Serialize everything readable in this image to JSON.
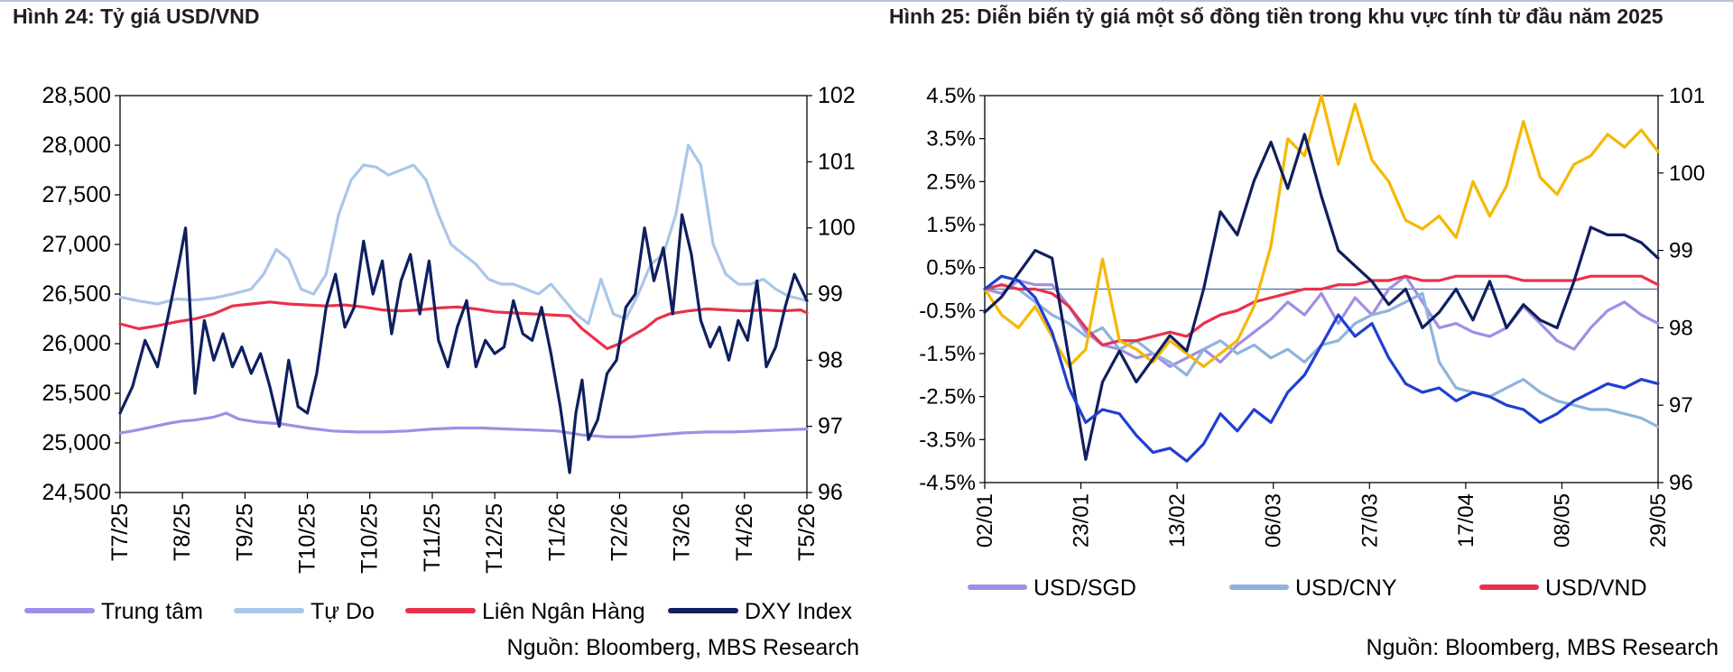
{
  "chart_data": [
    {
      "type": "line",
      "title": "Hình 24: Tỷ giá USD/VND",
      "x_ticks": [
        "T7/25",
        "T8/25",
        "T9/25",
        "T10/25",
        "T10/25",
        "T11/25",
        "T12/25",
        "T1/26",
        "T2/26",
        "T3/26",
        "T4/26",
        "T5/26"
      ],
      "y_left": {
        "ticks": [
          "28,500",
          "28,000",
          "27,500",
          "27,000",
          "26,500",
          "26,000",
          "25,500",
          "25,000",
          "24,500"
        ],
        "range": [
          24500,
          28500
        ]
      },
      "y_right": {
        "ticks": [
          "102",
          "101",
          "100",
          "99",
          "98",
          "97",
          "96"
        ],
        "range": [
          96,
          102
        ]
      },
      "source": "Nguồn: Bloomberg, MBS Research",
      "legend_position": "bottom",
      "series": [
        {
          "name": "Trung tâm",
          "axis": "left",
          "color": "#a08ee6",
          "x": [
            0,
            0.2,
            0.5,
            0.8,
            1,
            1.2,
            1.5,
            1.7,
            1.9,
            2.2,
            2.6,
            3,
            3.4,
            3.8,
            4.2,
            4.6,
            5,
            5.4,
            5.8,
            6.2,
            6.6,
            7,
            7.4,
            7.8,
            8.2,
            8.6,
            9,
            9.4,
            9.8,
            10.2,
            10.6,
            11
          ],
          "values": [
            25100,
            25120,
            25160,
            25200,
            25220,
            25230,
            25260,
            25300,
            25240,
            25210,
            25190,
            25150,
            25120,
            25110,
            25110,
            25120,
            25140,
            25150,
            25150,
            25140,
            25130,
            25120,
            25080,
            25060,
            25060,
            25080,
            25100,
            25110,
            25110,
            25120,
            25130,
            25140
          ]
        },
        {
          "name": "Tự Do",
          "axis": "left",
          "color": "#a9c7e8",
          "x": [
            0,
            0.3,
            0.6,
            0.9,
            1.2,
            1.5,
            1.8,
            2.1,
            2.3,
            2.5,
            2.7,
            2.9,
            3.1,
            3.3,
            3.5,
            3.7,
            3.9,
            4.1,
            4.3,
            4.5,
            4.7,
            4.9,
            5.1,
            5.3,
            5.5,
            5.7,
            5.9,
            6.1,
            6.3,
            6.5,
            6.7,
            6.9,
            7.1,
            7.3,
            7.5,
            7.7,
            7.9,
            8.1,
            8.3,
            8.5,
            8.7,
            8.9,
            9.1,
            9.3,
            9.5,
            9.7,
            9.9,
            10.1,
            10.3,
            10.5,
            10.7,
            10.9,
            11
          ],
          "values": [
            26470,
            26430,
            26400,
            26450,
            26440,
            26460,
            26500,
            26550,
            26700,
            26950,
            26850,
            26550,
            26500,
            26700,
            27300,
            27650,
            27800,
            27780,
            27700,
            27750,
            27800,
            27650,
            27300,
            27000,
            26900,
            26800,
            26650,
            26600,
            26600,
            26550,
            26500,
            26600,
            26450,
            26300,
            26200,
            26650,
            26300,
            26250,
            26500,
            26800,
            26900,
            27300,
            28000,
            27800,
            27000,
            26700,
            26600,
            26600,
            26650,
            26550,
            26480,
            26450,
            26430
          ]
        },
        {
          "name": "Liên Ngân Hàng",
          "axis": "left",
          "color": "#e8324b",
          "x": [
            0,
            0.3,
            0.6,
            0.9,
            1.2,
            1.5,
            1.8,
            2.1,
            2.4,
            2.7,
            3,
            3.3,
            3.6,
            3.9,
            4.2,
            4.5,
            4.8,
            5.1,
            5.4,
            5.7,
            6,
            6.3,
            6.6,
            6.9,
            7.2,
            7.4,
            7.6,
            7.8,
            8,
            8.2,
            8.4,
            8.6,
            8.8,
            9.1,
            9.4,
            9.7,
            10,
            10.3,
            10.6,
            10.9,
            11
          ],
          "values": [
            26200,
            26150,
            26180,
            26220,
            26250,
            26300,
            26380,
            26400,
            26420,
            26400,
            26390,
            26380,
            26390,
            26370,
            26340,
            26330,
            26340,
            26360,
            26370,
            26350,
            26320,
            26310,
            26300,
            26290,
            26280,
            26150,
            26050,
            25950,
            26000,
            26080,
            26150,
            26250,
            26300,
            26330,
            26350,
            26340,
            26330,
            26340,
            26330,
            26340,
            26310
          ]
        },
        {
          "name": "DXY Index",
          "axis": "right",
          "color": "#0f1f5e",
          "x": [
            0,
            0.2,
            0.4,
            0.6,
            0.8,
            0.95,
            1.05,
            1.2,
            1.35,
            1.5,
            1.65,
            1.8,
            1.95,
            2.1,
            2.25,
            2.4,
            2.55,
            2.7,
            2.85,
            3,
            3.15,
            3.3,
            3.45,
            3.6,
            3.75,
            3.9,
            4.05,
            4.2,
            4.35,
            4.5,
            4.65,
            4.8,
            4.95,
            5.1,
            5.25,
            5.4,
            5.55,
            5.7,
            5.85,
            6,
            6.15,
            6.3,
            6.45,
            6.6,
            6.75,
            6.9,
            7.05,
            7.2,
            7.3,
            7.4,
            7.5,
            7.65,
            7.8,
            7.95,
            8.1,
            8.25,
            8.4,
            8.55,
            8.7,
            8.85,
            9,
            9.15,
            9.3,
            9.45,
            9.6,
            9.75,
            9.9,
            10.05,
            10.2,
            10.35,
            10.5,
            10.65,
            10.8,
            10.95,
            11
          ],
          "values": [
            97.2,
            97.6,
            98.3,
            97.9,
            98.8,
            99.5,
            100.0,
            97.5,
            98.6,
            98.0,
            98.4,
            97.9,
            98.2,
            97.8,
            98.1,
            97.6,
            97.0,
            98.0,
            97.3,
            97.2,
            97.8,
            98.8,
            99.3,
            98.5,
            98.8,
            99.8,
            99.0,
            99.5,
            98.4,
            99.2,
            99.6,
            98.7,
            99.5,
            98.3,
            97.9,
            98.5,
            98.9,
            97.9,
            98.3,
            98.1,
            98.2,
            98.9,
            98.4,
            98.3,
            98.8,
            98.1,
            97.3,
            96.3,
            97.2,
            97.7,
            96.8,
            97.1,
            97.8,
            98.0,
            98.8,
            99.0,
            100.0,
            99.2,
            99.7,
            98.7,
            100.2,
            99.6,
            98.6,
            98.2,
            98.5,
            98.0,
            98.6,
            98.3,
            99.2,
            97.9,
            98.2,
            98.8,
            99.3,
            99.0,
            98.9
          ]
        }
      ]
    },
    {
      "type": "line",
      "title": "Hình 25: Diễn biến tỷ giá một số đồng tiền trong khu vực tính từ đầu năm 2025",
      "x_ticks": [
        "02/01",
        "23/01",
        "13/02",
        "06/03",
        "27/03",
        "17/04",
        "08/05",
        "29/05"
      ],
      "y_left": {
        "ticks": [
          "4.5%",
          "3.5%",
          "2.5%",
          "1.5%",
          "0.5%",
          "-0.5%",
          "-1.5%",
          "-2.5%",
          "-3.5%",
          "-4.5%"
        ],
        "range": [
          -4.5,
          4.5
        ]
      },
      "y_right": {
        "ticks": [
          "101",
          "100",
          "99",
          "98",
          "97",
          "96"
        ],
        "range": [
          96,
          101
        ]
      },
      "source": "Nguồn: Bloomberg, MBS Research",
      "legend_position": "bottom",
      "series": [
        {
          "name": "USD/SGD",
          "axis": "left",
          "color": "#a08ee6",
          "x": [
            0,
            1,
            2,
            3,
            4,
            5,
            6,
            7,
            8,
            9,
            10,
            11,
            12,
            13,
            14,
            15,
            16,
            17,
            18,
            19,
            20,
            21,
            22,
            23,
            24,
            25,
            26,
            27,
            28,
            29,
            30,
            31,
            32,
            33,
            34,
            35,
            36,
            37,
            38,
            39,
            40
          ],
          "values": [
            0.0,
            -0.1,
            0.2,
            0.1,
            0.1,
            -0.4,
            -1.0,
            -1.3,
            -1.4,
            -1.6,
            -1.5,
            -1.8,
            -1.6,
            -1.4,
            -1.7,
            -1.3,
            -1.0,
            -0.7,
            -0.3,
            -0.6,
            -0.1,
            -0.8,
            -0.2,
            -0.6,
            0.0,
            0.3,
            -0.3,
            -0.9,
            -0.8,
            -1.0,
            -1.1,
            -0.9,
            -0.4,
            -0.8,
            -1.2,
            -1.4,
            -0.9,
            -0.5,
            -0.3,
            -0.6,
            -0.8
          ]
        },
        {
          "name": "USD/CNY",
          "axis": "left",
          "color": "#8fb3dc",
          "x": [
            0,
            1,
            2,
            3,
            4,
            5,
            6,
            7,
            8,
            9,
            10,
            11,
            12,
            13,
            14,
            15,
            16,
            17,
            18,
            19,
            20,
            21,
            22,
            23,
            24,
            25,
            26,
            27,
            28,
            29,
            30,
            31,
            32,
            33,
            34,
            35,
            36,
            37,
            38,
            39,
            40
          ],
          "values": [
            0.0,
            0.1,
            0.0,
            -0.3,
            -0.6,
            -0.8,
            -1.1,
            -0.9,
            -1.4,
            -1.2,
            -1.5,
            -1.7,
            -2.0,
            -1.4,
            -1.2,
            -1.5,
            -1.3,
            -1.6,
            -1.4,
            -1.7,
            -1.3,
            -1.2,
            -0.8,
            -0.6,
            -0.5,
            -0.3,
            -0.1,
            -1.7,
            -2.3,
            -2.4,
            -2.5,
            -2.3,
            -2.1,
            -2.4,
            -2.6,
            -2.7,
            -2.8,
            -2.8,
            -2.9,
            -3.0,
            -3.2
          ]
        },
        {
          "name": "USD/VND",
          "axis": "left",
          "color": "#e8324b",
          "x": [
            0,
            1,
            2,
            3,
            4,
            5,
            6,
            7,
            8,
            9,
            10,
            11,
            12,
            13,
            14,
            15,
            16,
            17,
            18,
            19,
            20,
            21,
            22,
            23,
            24,
            25,
            26,
            27,
            28,
            29,
            30,
            31,
            32,
            33,
            34,
            35,
            36,
            37,
            38,
            39,
            40
          ],
          "values": [
            0.0,
            0.1,
            0.0,
            0.0,
            -0.1,
            -0.4,
            -0.9,
            -1.3,
            -1.2,
            -1.2,
            -1.1,
            -1.0,
            -1.1,
            -0.8,
            -0.6,
            -0.5,
            -0.3,
            -0.2,
            -0.1,
            0.0,
            0.0,
            0.1,
            0.1,
            0.2,
            0.2,
            0.3,
            0.2,
            0.2,
            0.3,
            0.3,
            0.3,
            0.3,
            0.2,
            0.2,
            0.2,
            0.2,
            0.3,
            0.3,
            0.3,
            0.3,
            0.1
          ]
        },
        {
          "name": "",
          "axis": "left",
          "color": "#f5b800",
          "x": [
            0,
            1,
            2,
            3,
            4,
            5,
            6,
            7,
            8,
            9,
            10,
            11,
            12,
            13,
            14,
            15,
            16,
            17,
            18,
            19,
            20,
            21,
            22,
            23,
            24,
            25,
            26,
            27,
            28,
            29,
            30,
            31,
            32,
            33,
            34,
            35,
            36,
            37,
            38,
            39,
            40
          ],
          "values": [
            0.0,
            -0.6,
            -0.9,
            -0.4,
            -1.1,
            -1.8,
            -1.4,
            0.7,
            -1.2,
            -1.4,
            -1.7,
            -1.2,
            -1.5,
            -1.8,
            -1.5,
            -1.2,
            -0.4,
            1.0,
            3.5,
            3.1,
            4.5,
            2.9,
            4.3,
            3.0,
            2.5,
            1.6,
            1.4,
            1.7,
            1.2,
            2.5,
            1.7,
            2.4,
            3.9,
            2.6,
            2.2,
            2.9,
            3.1,
            3.6,
            3.3,
            3.7,
            3.2
          ]
        },
        {
          "name": "",
          "axis": "right",
          "color": "#0f1f5e",
          "x": [
            0,
            1,
            2,
            3,
            4,
            5,
            6,
            7,
            8,
            9,
            10,
            11,
            12,
            13,
            14,
            15,
            16,
            17,
            18,
            19,
            20,
            21,
            22,
            23,
            24,
            25,
            26,
            27,
            28,
            29,
            30,
            31,
            32,
            33,
            34,
            35,
            36,
            37,
            38,
            39,
            40
          ],
          "values": [
            98.2,
            98.4,
            98.7,
            99.0,
            98.9,
            97.6,
            96.3,
            97.3,
            97.7,
            97.3,
            97.6,
            97.9,
            97.7,
            98.5,
            99.5,
            99.2,
            99.9,
            100.4,
            99.8,
            100.5,
            99.7,
            99.0,
            98.8,
            98.6,
            98.3,
            98.5,
            98.0,
            98.2,
            98.5,
            98.1,
            98.6,
            98.0,
            98.3,
            98.1,
            98.0,
            98.6,
            99.3,
            99.2,
            99.2,
            99.1,
            98.9
          ]
        },
        {
          "name": "",
          "axis": "left",
          "color": "#1f3fd0",
          "x": [
            0,
            1,
            2,
            3,
            4,
            5,
            6,
            7,
            8,
            9,
            10,
            11,
            12,
            13,
            14,
            15,
            16,
            17,
            18,
            19,
            20,
            21,
            22,
            23,
            24,
            25,
            26,
            27,
            28,
            29,
            30,
            31,
            32,
            33,
            34,
            35,
            36,
            37,
            38,
            39,
            40
          ],
          "values": [
            0.0,
            0.3,
            0.2,
            -0.2,
            -1.0,
            -2.3,
            -3.1,
            -2.8,
            -2.9,
            -3.4,
            -3.8,
            -3.7,
            -4.0,
            -3.6,
            -2.9,
            -3.3,
            -2.8,
            -3.1,
            -2.4,
            -2.0,
            -1.3,
            -0.6,
            -1.1,
            -0.8,
            -1.6,
            -2.2,
            -2.4,
            -2.3,
            -2.6,
            -2.4,
            -2.5,
            -2.7,
            -2.8,
            -3.1,
            -2.9,
            -2.6,
            -2.4,
            -2.2,
            -2.3,
            -2.1,
            -2.2
          ]
        }
      ]
    }
  ]
}
